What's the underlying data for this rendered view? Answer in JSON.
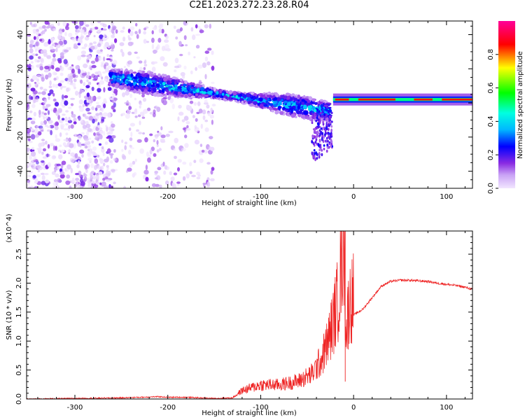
{
  "title": "C2E1.2023.272.23.28.R04",
  "chart_data": [
    {
      "type": "heatmap",
      "xlabel": "Height of straight line (km)",
      "ylabel": "Frequency (Hz)",
      "xlim": [
        -352,
        128
      ],
      "ylim": [
        -50,
        48
      ],
      "xticks": [
        -300,
        -200,
        -100,
        0,
        100
      ],
      "yticks": [
        -40,
        -20,
        0,
        20,
        40
      ],
      "colorbar": {
        "label": "Normalized spectral amplitude",
        "range": [
          0,
          1
        ],
        "ticks": [
          "0.0",
          "0.2",
          "0.4",
          "0.6",
          "0.8"
        ],
        "colors": [
          "#f2e6ff",
          "#8a2be2",
          "#0000ff",
          "#00e5ff",
          "#00ff00",
          "#ffff00",
          "#ff0000",
          "#ff00aa"
        ]
      },
      "features": [
        {
          "name": "scattered noise",
          "x_range": [
            -352,
            -255
          ],
          "freq_range": [
            -50,
            48
          ],
          "amplitude": 0.1
        },
        {
          "name": "scattered noise",
          "x_range": [
            -250,
            -150
          ],
          "freq_range": [
            -50,
            48
          ],
          "amplitude": 0.05
        },
        {
          "name": "drifting band",
          "x_start": -262,
          "x_end": -25,
          "freq_start": 15,
          "freq_end": -5,
          "amplitude": 0.4
        },
        {
          "name": "narrow band",
          "x_start": -22,
          "x_end": 128,
          "freq": 2,
          "amplitude": 0.85
        }
      ]
    },
    {
      "type": "line",
      "xlabel": "Height of straight line (km)",
      "ylabel": "SNR (10 * v/v)",
      "y_multiplier": "(x10^4)",
      "xlim": [
        -352,
        128
      ],
      "ylim": [
        0,
        2.9
      ],
      "xticks": [
        -300,
        -200,
        -100,
        0,
        100
      ],
      "yticks": [
        "0.0",
        "0.5",
        "1.0",
        "1.5",
        "2.0",
        "2.5"
      ],
      "series": [
        {
          "color": "#ee2222",
          "x": [
            -352,
            -300,
            -250,
            -210,
            -200,
            -180,
            -150,
            -130,
            -120,
            -100,
            -80,
            -60,
            -45,
            -35,
            -28,
            -22,
            -17,
            -13,
            -11,
            -8,
            -5,
            0,
            10,
            20,
            30,
            40,
            50,
            60,
            70,
            80,
            90,
            100,
            110,
            120,
            128
          ],
          "y": [
            0.0,
            0.01,
            0.02,
            0.04,
            0.03,
            0.03,
            0.01,
            0.02,
            0.12,
            0.2,
            0.2,
            0.25,
            0.35,
            0.55,
            0.8,
            1.1,
            1.4,
            1.9,
            2.5,
            0.9,
            1.35,
            1.45,
            1.55,
            1.75,
            1.95,
            2.03,
            2.05,
            2.05,
            2.04,
            2.03,
            2.0,
            1.98,
            1.96,
            1.93,
            1.89
          ]
        }
      ]
    }
  ]
}
